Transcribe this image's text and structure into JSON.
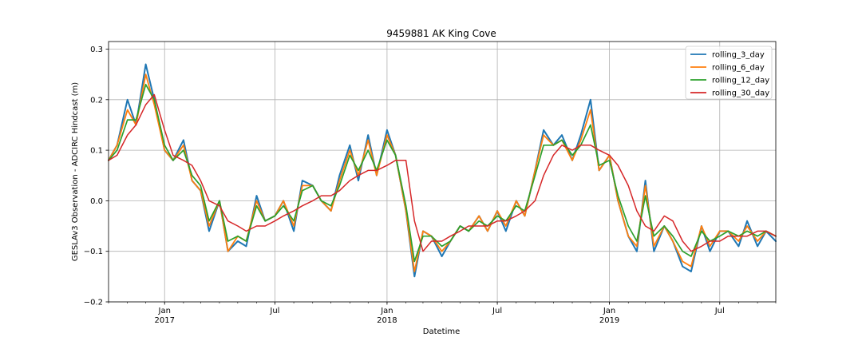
{
  "chart_data": {
    "type": "line",
    "title": "9459881 AK King Cove",
    "xlabel": "Datetime",
    "ylabel": "GESLAv3 Observation - ADCIRC Hindcast (m)",
    "x_range": [
      "2016-10-01",
      "2019-10-01"
    ],
    "ylim": [
      -0.2,
      0.315
    ],
    "grid": true,
    "legend_position": "top-right",
    "y_ticks": [
      -0.2,
      -0.1,
      0.0,
      0.1,
      0.2,
      0.3
    ],
    "y_tick_labels": [
      "−0.2",
      "−0.1",
      "0.0",
      "0.1",
      "0.2",
      "0.3"
    ],
    "x_major_ticks": [
      {
        "date": "2017-01-01",
        "label": "Jan",
        "year": "2017"
      },
      {
        "date": "2017-07-01",
        "label": "Jul",
        "year": ""
      },
      {
        "date": "2018-01-01",
        "label": "Jan",
        "year": "2018"
      },
      {
        "date": "2018-07-01",
        "label": "Jul",
        "year": ""
      },
      {
        "date": "2019-01-01",
        "label": "Jan",
        "year": "2019"
      },
      {
        "date": "2019-07-01",
        "label": "Jul",
        "year": ""
      }
    ],
    "x": [
      "2016-10-01",
      "2016-10-15",
      "2016-11-01",
      "2016-11-15",
      "2016-12-01",
      "2016-12-15",
      "2017-01-01",
      "2017-01-15",
      "2017-02-01",
      "2017-02-15",
      "2017-03-01",
      "2017-03-15",
      "2017-04-01",
      "2017-04-15",
      "2017-05-01",
      "2017-05-15",
      "2017-06-01",
      "2017-06-15",
      "2017-07-01",
      "2017-07-15",
      "2017-08-01",
      "2017-08-15",
      "2017-09-01",
      "2017-09-15",
      "2017-10-01",
      "2017-10-15",
      "2017-11-01",
      "2017-11-15",
      "2017-12-01",
      "2017-12-15",
      "2018-01-01",
      "2018-01-15",
      "2018-02-01",
      "2018-02-15",
      "2018-03-01",
      "2018-03-15",
      "2018-04-01",
      "2018-04-15",
      "2018-05-01",
      "2018-05-15",
      "2018-06-01",
      "2018-06-15",
      "2018-07-01",
      "2018-07-15",
      "2018-08-01",
      "2018-08-15",
      "2018-09-01",
      "2018-09-15",
      "2018-10-01",
      "2018-10-15",
      "2018-11-01",
      "2018-11-15",
      "2018-12-01",
      "2018-12-15",
      "2019-01-01",
      "2019-01-15",
      "2019-02-01",
      "2019-02-15",
      "2019-03-01",
      "2019-03-15",
      "2019-04-01",
      "2019-04-15",
      "2019-05-01",
      "2019-05-15",
      "2019-06-01",
      "2019-06-15",
      "2019-07-01",
      "2019-07-15",
      "2019-08-01",
      "2019-08-15",
      "2019-09-01",
      "2019-09-15",
      "2019-10-01"
    ],
    "series": [
      {
        "name": "rolling_3_day",
        "color": "#1f77b4",
        "width": 2.0,
        "values": [
          0.08,
          0.11,
          0.2,
          0.15,
          0.27,
          0.2,
          0.1,
          0.08,
          0.12,
          0.04,
          0.02,
          -0.06,
          0.0,
          -0.1,
          -0.08,
          -0.09,
          0.01,
          -0.04,
          -0.03,
          0.0,
          -0.06,
          0.04,
          0.03,
          0.0,
          -0.02,
          0.05,
          0.11,
          0.04,
          0.13,
          0.05,
          0.14,
          0.09,
          -0.02,
          -0.15,
          -0.06,
          -0.07,
          -0.11,
          -0.08,
          -0.05,
          -0.06,
          -0.03,
          -0.06,
          -0.02,
          -0.06,
          0.0,
          -0.03,
          0.06,
          0.14,
          0.11,
          0.13,
          0.08,
          0.13,
          0.2,
          0.06,
          0.09,
          0.0,
          -0.07,
          -0.1,
          0.04,
          -0.1,
          -0.05,
          -0.08,
          -0.13,
          -0.14,
          -0.05,
          -0.1,
          -0.06,
          -0.06,
          -0.09,
          -0.04,
          -0.09,
          -0.06,
          -0.08
        ]
      },
      {
        "name": "rolling_6_day",
        "color": "#ff7f0e",
        "width": 1.8,
        "values": [
          0.08,
          0.11,
          0.18,
          0.15,
          0.25,
          0.19,
          0.1,
          0.08,
          0.11,
          0.04,
          0.02,
          -0.05,
          0.0,
          -0.1,
          -0.07,
          -0.08,
          0.0,
          -0.04,
          -0.03,
          0.0,
          -0.05,
          0.03,
          0.03,
          0.0,
          -0.02,
          0.04,
          0.1,
          0.05,
          0.12,
          0.05,
          0.13,
          0.09,
          -0.02,
          -0.14,
          -0.06,
          -0.07,
          -0.1,
          -0.08,
          -0.05,
          -0.06,
          -0.03,
          -0.06,
          -0.02,
          -0.05,
          0.0,
          -0.03,
          0.06,
          0.13,
          0.11,
          0.12,
          0.08,
          0.12,
          0.18,
          0.06,
          0.09,
          0.0,
          -0.07,
          -0.09,
          0.03,
          -0.09,
          -0.05,
          -0.08,
          -0.12,
          -0.13,
          -0.05,
          -0.09,
          -0.06,
          -0.06,
          -0.08,
          -0.05,
          -0.08,
          -0.06,
          -0.07
        ]
      },
      {
        "name": "rolling_12_day",
        "color": "#2ca02c",
        "width": 1.7,
        "values": [
          0.08,
          0.1,
          0.16,
          0.16,
          0.23,
          0.2,
          0.11,
          0.08,
          0.1,
          0.05,
          0.03,
          -0.04,
          0.0,
          -0.08,
          -0.07,
          -0.08,
          -0.01,
          -0.04,
          -0.03,
          -0.01,
          -0.04,
          0.02,
          0.03,
          0.0,
          -0.01,
          0.03,
          0.09,
          0.06,
          0.1,
          0.06,
          0.12,
          0.09,
          -0.01,
          -0.12,
          -0.07,
          -0.07,
          -0.09,
          -0.08,
          -0.05,
          -0.06,
          -0.04,
          -0.05,
          -0.03,
          -0.04,
          -0.01,
          -0.02,
          0.05,
          0.11,
          0.11,
          0.12,
          0.09,
          0.11,
          0.15,
          0.07,
          0.08,
          0.01,
          -0.05,
          -0.08,
          0.01,
          -0.07,
          -0.05,
          -0.07,
          -0.1,
          -0.11,
          -0.06,
          -0.08,
          -0.07,
          -0.06,
          -0.07,
          -0.06,
          -0.07,
          -0.06,
          -0.07
        ]
      },
      {
        "name": "rolling_30_day",
        "color": "#d62728",
        "width": 1.5,
        "values": [
          0.08,
          0.09,
          0.13,
          0.15,
          0.19,
          0.21,
          0.14,
          0.09,
          0.08,
          0.07,
          0.04,
          0.0,
          -0.01,
          -0.04,
          -0.05,
          -0.06,
          -0.05,
          -0.05,
          -0.04,
          -0.03,
          -0.02,
          -0.01,
          0.0,
          0.01,
          0.01,
          0.02,
          0.04,
          0.05,
          0.06,
          0.06,
          0.07,
          0.08,
          0.08,
          -0.04,
          -0.1,
          -0.08,
          -0.08,
          -0.07,
          -0.06,
          -0.05,
          -0.05,
          -0.05,
          -0.04,
          -0.04,
          -0.03,
          -0.02,
          0.0,
          0.05,
          0.09,
          0.11,
          0.1,
          0.11,
          0.11,
          0.1,
          0.09,
          0.07,
          0.03,
          -0.02,
          -0.05,
          -0.06,
          -0.03,
          -0.04,
          -0.08,
          -0.1,
          -0.09,
          -0.08,
          -0.08,
          -0.07,
          -0.07,
          -0.07,
          -0.06,
          -0.06,
          -0.07
        ]
      }
    ]
  }
}
